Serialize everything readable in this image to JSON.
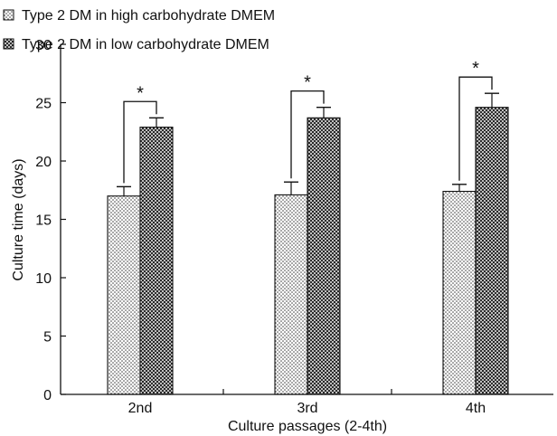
{
  "chart_data": {
    "type": "bar",
    "xlabel": "Culture passages (2-4th)",
    "ylabel": "Culture time (days)",
    "ylim": [
      0,
      30
    ],
    "yticks": [
      0,
      5,
      10,
      15,
      20,
      25,
      30
    ],
    "categories": [
      "2nd",
      "3rd",
      "4th"
    ],
    "legend_position": "top-left",
    "series": [
      {
        "name": "Type 2 DM in high carbohydrate DMEM",
        "pattern": "dots",
        "values": [
          17.0,
          17.1,
          17.4
        ],
        "errors": [
          0.8,
          1.1,
          0.6
        ]
      },
      {
        "name": "Type 2 DM in low carbohydrate DMEM",
        "pattern": "crosshatch",
        "values": [
          22.9,
          23.7,
          24.6
        ],
        "errors": [
          0.8,
          0.9,
          1.2
        ]
      }
    ],
    "significance_marks": [
      "*",
      "*",
      "*"
    ],
    "colors": {
      "axis": "#111111",
      "bar_fill": "#ffffff",
      "pattern_ink": "#222222"
    }
  }
}
